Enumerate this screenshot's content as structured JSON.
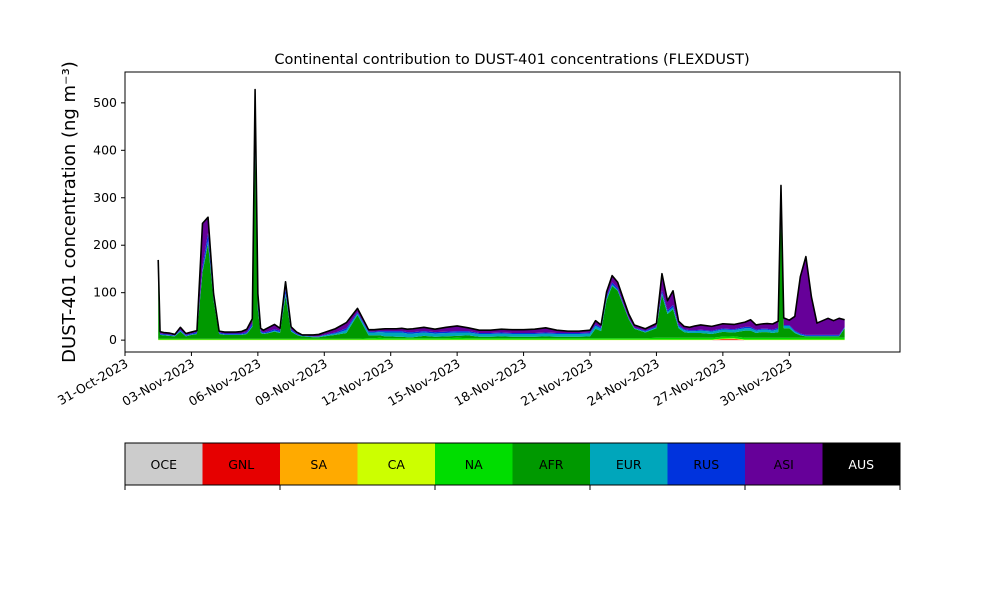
{
  "chart_data": {
    "type": "area",
    "stacked": true,
    "title": "Continental contribution to DUST-401 concentrations (FLEXDUST)",
    "ylabel": "DUST-401 concentration (ng m⁻³)",
    "xlabel": "",
    "x_axis": "date",
    "xlim": [
      "2023-10-31T00:00",
      "2023-12-05T00:00"
    ],
    "ylim": [
      -25,
      565
    ],
    "x_ticks": [
      "31-Oct-2023",
      "03-Nov-2023",
      "06-Nov-2023",
      "09-Nov-2023",
      "12-Nov-2023",
      "15-Nov-2023",
      "18-Nov-2023",
      "21-Nov-2023",
      "24-Nov-2023",
      "27-Nov-2023",
      "30-Nov-2023"
    ],
    "y_ticks": [
      0,
      100,
      200,
      300,
      400,
      500
    ],
    "grid": false,
    "legend_placement": "below",
    "series_order": [
      "OCE",
      "GNL",
      "SA",
      "CA",
      "NA",
      "AFR",
      "EUR",
      "RUS",
      "ASI",
      "AUS"
    ],
    "colors": {
      "OCE": "#cccccc",
      "GNL": "#e60000",
      "SA": "#ffaa00",
      "CA": "#ccff00",
      "NA": "#00dd00",
      "AFR": "#009900",
      "EUR": "#00a6bb",
      "RUS": "#0033dd",
      "ASI": "#660099",
      "AUS": "#000000"
    },
    "total_line_color": "#000000",
    "dates": [
      "2023-11-01T12",
      "2023-11-01T14",
      "2023-11-01T18",
      "2023-11-02T00",
      "2023-11-02T06",
      "2023-11-02T12",
      "2023-11-02T18",
      "2023-11-03T00",
      "2023-11-03T06",
      "2023-11-03T12",
      "2023-11-03T18",
      "2023-11-04T00",
      "2023-11-04T06",
      "2023-11-04T12",
      "2023-11-04T18",
      "2023-11-05T00",
      "2023-11-05T06",
      "2023-11-05T12",
      "2023-11-05T18",
      "2023-11-05T21",
      "2023-11-06T00",
      "2023-11-06T03",
      "2023-11-06T06",
      "2023-11-06T12",
      "2023-11-06T18",
      "2023-11-07T00",
      "2023-11-07T06",
      "2023-11-07T12",
      "2023-11-07T18",
      "2023-11-07T21",
      "2023-11-08T00",
      "2023-11-08T06",
      "2023-11-08T12",
      "2023-11-08T18",
      "2023-11-09T00",
      "2023-11-09T12",
      "2023-11-10T00",
      "2023-11-10T12",
      "2023-11-11T00",
      "2023-11-11T06",
      "2023-11-11T12",
      "2023-11-11T18",
      "2023-11-12T00",
      "2023-11-12T06",
      "2023-11-12T12",
      "2023-11-12T18",
      "2023-11-13T00",
      "2023-11-13T12",
      "2023-11-14T00",
      "2023-11-14T12",
      "2023-11-15T00",
      "2023-11-15T12",
      "2023-11-16T00",
      "2023-11-16T12",
      "2023-11-17T00",
      "2023-11-17T12",
      "2023-11-18T00",
      "2023-11-18T12",
      "2023-11-19T00",
      "2023-11-19T12",
      "2023-11-20T00",
      "2023-11-20T12",
      "2023-11-21T00",
      "2023-11-21T06",
      "2023-11-21T12",
      "2023-11-21T18",
      "2023-11-22T00",
      "2023-11-22T06",
      "2023-11-22T12",
      "2023-11-22T18",
      "2023-11-23T00",
      "2023-11-23T12",
      "2023-11-24T00",
      "2023-11-24T06",
      "2023-11-24T12",
      "2023-11-24T18",
      "2023-11-25T00",
      "2023-11-25T06",
      "2023-11-25T12",
      "2023-11-25T18",
      "2023-11-26T00",
      "2023-11-26T12",
      "2023-11-27T00",
      "2023-11-27T12",
      "2023-11-28T00",
      "2023-11-28T06",
      "2023-11-28T12",
      "2023-11-28T18",
      "2023-11-29T00",
      "2023-11-29T06",
      "2023-11-29T12",
      "2023-11-29T15",
      "2023-11-29T18",
      "2023-11-30T00",
      "2023-11-30T06",
      "2023-11-30T12",
      "2023-11-30T18",
      "2023-12-01T00",
      "2023-12-01T06",
      "2023-12-01T12",
      "2023-12-01T18",
      "2023-12-02T00",
      "2023-12-02T06",
      "2023-12-02T12"
    ],
    "series": [
      {
        "name": "OCE",
        "values": [
          0,
          0,
          0,
          0,
          0,
          0,
          0,
          0,
          0,
          0,
          0,
          0,
          0,
          0,
          0,
          0,
          0,
          0,
          0,
          0,
          0,
          0,
          0,
          0,
          0,
          0,
          0,
          0,
          0,
          0,
          0,
          0,
          0,
          0,
          0,
          0,
          0,
          0,
          0,
          0,
          0,
          0,
          0,
          0,
          0,
          0,
          0,
          0,
          0,
          0,
          0,
          0,
          0,
          0,
          0,
          0,
          0,
          0,
          0,
          0,
          0,
          0,
          0,
          0,
          0,
          0,
          0,
          0,
          0,
          0,
          0,
          0,
          0,
          0,
          0,
          0,
          0,
          0,
          0,
          0,
          0,
          0,
          0,
          0,
          0,
          0,
          0,
          0,
          0,
          0,
          0,
          0,
          0,
          0,
          0,
          0,
          0,
          0,
          0,
          0,
          0,
          0,
          0,
          0
        ]
      },
      {
        "name": "GNL",
        "values": [
          0,
          0,
          0,
          0,
          0,
          0,
          0,
          0,
          0,
          0,
          0,
          0,
          0,
          0,
          0,
          0,
          0,
          0,
          0,
          0,
          0,
          0,
          0,
          0,
          0,
          0,
          0,
          0,
          0,
          0,
          0,
          0,
          0,
          0,
          0,
          0,
          0,
          0,
          0,
          0,
          0,
          0,
          0,
          0,
          0,
          0,
          0,
          0,
          0,
          0,
          0,
          0,
          0,
          0,
          0,
          0,
          0,
          0,
          0,
          0,
          0,
          0,
          0,
          0,
          0,
          0,
          0,
          0,
          0,
          0,
          0,
          0,
          0,
          0,
          0,
          0,
          0,
          0,
          0,
          0,
          0,
          0,
          1.5,
          2,
          0,
          0,
          0,
          0,
          0,
          0,
          0,
          0,
          0,
          0,
          0,
          0,
          0,
          0,
          0,
          0,
          0,
          0,
          0,
          0
        ]
      },
      {
        "name": "SA",
        "values": [
          0,
          0,
          0,
          0,
          0,
          0,
          0,
          0,
          0,
          0,
          0,
          0,
          0,
          0,
          0,
          0,
          0,
          0,
          0,
          0,
          0,
          0,
          0,
          0,
          0,
          0,
          0,
          0,
          0,
          0,
          0,
          0,
          0,
          0,
          0,
          0,
          0,
          0,
          0,
          0,
          0,
          0,
          0,
          0,
          0,
          0,
          0,
          0,
          0,
          0,
          0,
          0,
          0,
          0,
          0,
          0,
          0,
          0,
          0,
          0,
          0,
          0,
          0,
          0,
          0,
          0,
          0,
          0,
          0,
          0,
          0,
          0,
          0,
          0,
          0,
          0,
          0,
          0,
          0,
          0,
          0,
          0,
          1,
          1,
          0,
          0,
          0,
          0,
          0,
          0,
          0,
          0,
          0,
          0,
          0,
          0,
          0,
          0,
          0,
          0,
          0,
          0,
          0,
          0
        ]
      },
      {
        "name": "CA",
        "values": [
          1,
          1,
          1,
          1,
          1,
          1,
          1,
          1,
          1,
          1,
          1,
          1,
          1,
          1,
          1,
          1,
          1,
          1,
          1,
          1,
          1,
          1,
          1,
          1,
          1,
          1,
          1,
          1,
          1,
          1,
          1,
          1,
          1,
          1,
          1,
          1,
          1,
          1,
          1,
          1,
          1,
          1,
          1,
          1,
          1,
          1,
          1,
          1,
          1,
          1,
          1,
          1,
          1,
          1,
          1,
          1,
          1,
          1,
          1,
          1,
          1,
          1,
          1,
          1,
          1,
          1,
          1,
          1,
          1,
          1,
          1,
          1,
          1,
          1,
          1,
          1,
          1,
          1,
          1,
          1,
          1,
          1,
          1,
          1,
          1,
          1,
          1,
          1,
          1,
          1,
          1,
          1,
          1,
          1,
          1,
          1,
          1,
          1,
          1,
          1,
          1,
          1,
          1,
          1
        ]
      },
      {
        "name": "NA",
        "values": [
          2,
          2,
          2,
          2,
          2,
          2,
          2,
          2,
          2,
          2,
          2,
          2,
          2,
          2,
          2,
          2,
          2,
          2,
          2,
          2,
          2,
          2,
          2,
          2,
          2,
          2,
          2,
          2,
          2,
          2,
          2,
          2,
          2,
          2,
          2,
          2,
          2,
          2,
          3,
          3,
          4,
          3,
          3,
          3,
          3,
          3,
          3,
          3,
          3,
          3,
          4,
          3,
          3,
          3,
          3,
          3,
          3,
          3,
          3,
          3,
          3,
          3,
          3,
          3,
          3,
          3,
          3,
          3,
          3,
          3,
          3,
          3,
          4,
          4,
          4,
          4,
          4,
          4,
          4,
          4,
          4,
          4,
          4,
          4,
          4,
          4,
          4,
          4,
          4,
          4,
          4,
          4,
          4,
          4,
          4,
          4,
          4,
          4,
          4,
          4,
          4,
          4,
          4,
          4
        ]
      },
      {
        "name": "AFR",
        "values": [
          130,
          8,
          7,
          6,
          5,
          15,
          5,
          8,
          10,
          140,
          200,
          80,
          10,
          8,
          8,
          8,
          8,
          10,
          25,
          400,
          60,
          12,
          10,
          12,
          15,
          12,
          90,
          15,
          8,
          6,
          5,
          4,
          3,
          3,
          5,
          8,
          12,
          50,
          6,
          6,
          5,
          4,
          4,
          3,
          3,
          2,
          2,
          5,
          3,
          4,
          4,
          6,
          3,
          3,
          4,
          3,
          3,
          3,
          4,
          3,
          3,
          3,
          4,
          20,
          15,
          80,
          110,
          100,
          70,
          40,
          20,
          12,
          20,
          90,
          50,
          60,
          20,
          12,
          10,
          10,
          10,
          8,
          10,
          8,
          15,
          15,
          10,
          12,
          12,
          10,
          12,
          260,
          20,
          20,
          10,
          5,
          3,
          3,
          3,
          3,
          3,
          3,
          3,
          20
        ]
      },
      {
        "name": "EUR",
        "values": [
          2,
          1,
          1,
          1,
          1,
          2,
          1,
          1,
          1,
          3,
          5,
          2,
          1,
          1,
          1,
          1,
          1,
          1,
          2,
          30,
          5,
          2,
          1,
          1,
          2,
          2,
          5,
          2,
          1,
          1,
          1,
          1,
          1,
          1,
          2,
          3,
          6,
          3,
          6,
          6,
          7,
          8,
          8,
          9,
          9,
          8,
          8,
          7,
          7,
          7,
          7,
          6,
          6,
          6,
          6,
          6,
          6,
          6,
          6,
          6,
          6,
          6,
          6,
          6,
          5,
          4,
          3,
          2,
          1,
          1,
          1,
          2,
          2,
          4,
          4,
          4,
          4,
          4,
          4,
          4,
          5,
          5,
          5,
          5,
          5,
          5,
          5,
          5,
          5,
          5,
          6,
          5,
          5,
          5,
          3,
          2,
          1,
          1,
          1,
          1,
          1,
          1,
          1,
          1
        ]
      },
      {
        "name": "RUS",
        "values": [
          4,
          2,
          2,
          2,
          1,
          2,
          2,
          2,
          3,
          10,
          18,
          5,
          2,
          2,
          2,
          2,
          2,
          3,
          5,
          35,
          10,
          3,
          2,
          3,
          3,
          3,
          10,
          3,
          2,
          2,
          1,
          1,
          1,
          1,
          1,
          2,
          4,
          3,
          2,
          2,
          2,
          3,
          3,
          3,
          3,
          3,
          3,
          3,
          3,
          3,
          3,
          3,
          2,
          2,
          2,
          2,
          2,
          2,
          2,
          2,
          2,
          2,
          2,
          3,
          3,
          4,
          5,
          4,
          3,
          2,
          1,
          2,
          2,
          6,
          4,
          5,
          3,
          2,
          2,
          2,
          2,
          2,
          2,
          2,
          3,
          3,
          2,
          2,
          2,
          2,
          3,
          6,
          2,
          2,
          2,
          2,
          2,
          2,
          2,
          2,
          2,
          2,
          2,
          2
        ]
      },
      {
        "name": "ASI",
        "values": [
          30,
          4,
          3,
          3,
          2,
          5,
          3,
          3,
          3,
          90,
          33,
          8,
          3,
          3,
          3,
          3,
          4,
          6,
          10,
          60,
          20,
          5,
          5,
          8,
          10,
          5,
          15,
          5,
          3,
          2,
          1,
          2,
          3,
          4,
          5,
          8,
          12,
          8,
          4,
          4,
          4,
          5,
          5,
          5,
          6,
          6,
          7,
          8,
          6,
          9,
          11,
          7,
          6,
          6,
          7,
          7,
          7,
          8,
          10,
          6,
          4,
          4,
          5,
          8,
          5,
          10,
          14,
          12,
          10,
          8,
          6,
          4,
          6,
          35,
          20,
          30,
          8,
          6,
          6,
          9,
          10,
          9,
          10,
          10,
          10,
          15,
          10,
          10,
          11,
          12,
          14,
          50,
          15,
          10,
          30,
          120,
          165,
          80,
          25,
          30,
          35,
          30,
          35,
          15
        ]
      },
      {
        "name": "AUS",
        "values": [
          0,
          0,
          0,
          0,
          0,
          0,
          0,
          0,
          0,
          0,
          0,
          0,
          0,
          0,
          0,
          0,
          0,
          0,
          0,
          0,
          0,
          0,
          0,
          0,
          0,
          0,
          0,
          0,
          0,
          0,
          0,
          0,
          0,
          0,
          0,
          0,
          0,
          0,
          0,
          0,
          0,
          0,
          0,
          0,
          0,
          0,
          0,
          0,
          0,
          0,
          0,
          0,
          0,
          0,
          0,
          0,
          0,
          0,
          0,
          0,
          0,
          0,
          0,
          0,
          0,
          0,
          0,
          0,
          0,
          0,
          0,
          0,
          0,
          0,
          0,
          0,
          0,
          0,
          0,
          0,
          0,
          0,
          0,
          0,
          0,
          0,
          0,
          0,
          0,
          0,
          0,
          0,
          0,
          0,
          0,
          0,
          0,
          0,
          0,
          0,
          0,
          0,
          0,
          0
        ]
      }
    ]
  }
}
